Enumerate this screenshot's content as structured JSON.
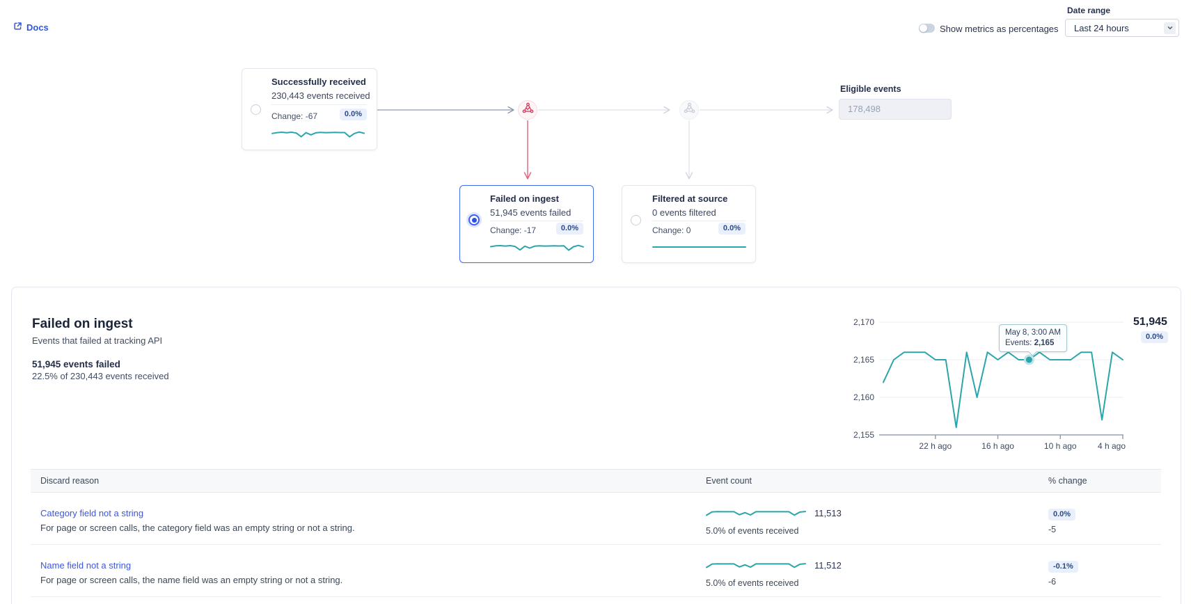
{
  "header": {
    "docs_label": "Docs",
    "toggle_label": "Show metrics as percentages",
    "date_range_label": "Date range",
    "date_range_value": "Last 24 hours"
  },
  "flow": {
    "received": {
      "title": "Successfully received",
      "subtitle": "230,443 events received",
      "change": "Change: -67",
      "pct": "0.0%",
      "sparkline": [
        48,
        56,
        60,
        55,
        60,
        52,
        16,
        56,
        34,
        54,
        58,
        56,
        57,
        58,
        57,
        57,
        15,
        48,
        62,
        50
      ]
    },
    "failed": {
      "title": "Failed on ingest",
      "subtitle": "51,945 events failed",
      "change": "Change: -17",
      "pct": "0.0%",
      "sparkline": [
        50,
        58,
        60,
        56,
        60,
        52,
        18,
        55,
        36,
        55,
        58,
        56,
        57,
        58,
        57,
        58,
        16,
        50,
        62,
        48
      ]
    },
    "filtered": {
      "title": "Filtered at source",
      "subtitle": "0 events filtered",
      "change": "Change: 0",
      "pct": "0.0%",
      "sparkline": [
        50,
        50
      ]
    },
    "eligible": {
      "label": "Eligible events",
      "value": "178,498"
    }
  },
  "detail": {
    "title": "Failed on ingest",
    "subtitle": "Events that failed at tracking API",
    "stat_primary": "51,945 events failed",
    "stat_secondary": "22.5% of 230,443 events received",
    "total": "51,945",
    "total_pct": "0.0%",
    "tooltip": {
      "date": "May 8, 3:00 AM",
      "events_label": "Events:",
      "events_value": "2,165"
    }
  },
  "chart_data": {
    "type": "line",
    "series_name": "Events",
    "x_unit": "hours ago (hourly points, last 24 hours)",
    "values": [
      2162,
      2165,
      2166,
      2166,
      2166,
      2165,
      2165,
      2156,
      2166,
      2160,
      2166,
      2165,
      2166,
      2165,
      2165,
      2166,
      2165,
      2165,
      2165,
      2166,
      2166,
      2157,
      2166,
      2165
    ],
    "highlight_index": 14,
    "y_ticks": [
      2155,
      2160,
      2165,
      2170
    ],
    "ylim": [
      2155,
      2170
    ],
    "x_tick_labels": [
      "22 h ago",
      "16 h ago",
      "10 h ago",
      "4 h ago"
    ],
    "x_tick_indices": [
      5,
      11,
      17,
      23
    ],
    "grid": true,
    "legend": false
  },
  "table": {
    "columns": [
      "Discard reason",
      "Event count",
      "% change"
    ],
    "row_sparkline": [
      25,
      60,
      63,
      62,
      62,
      62,
      30,
      52,
      28,
      62,
      62,
      62,
      62,
      62,
      62,
      62,
      26,
      58,
      64
    ],
    "rows": [
      {
        "reason": "Category field not a string",
        "description": "For page or screen calls, the category field was an empty string or not a string.",
        "count": "11,513",
        "count_note": "5.0% of events received",
        "pct_change": "0.0%",
        "change_abs": "-5"
      },
      {
        "reason": "Name field not a string",
        "description": "For page or screen calls, the name field was an empty string or not a string.",
        "count": "11,512",
        "count_note": "5.0% of events received",
        "pct_change": "-0.1%",
        "change_abs": "-6"
      }
    ]
  },
  "colors": {
    "teal": "#29a5ab",
    "link_blue": "#3c56e0",
    "selected_blue": "#4468f0",
    "red": "#d63a5e",
    "badge_bg": "#e9f0fc",
    "badge_text": "#2c4a86",
    "axis_text": "#3f4a5f",
    "gridline": "#e9ecf1"
  }
}
